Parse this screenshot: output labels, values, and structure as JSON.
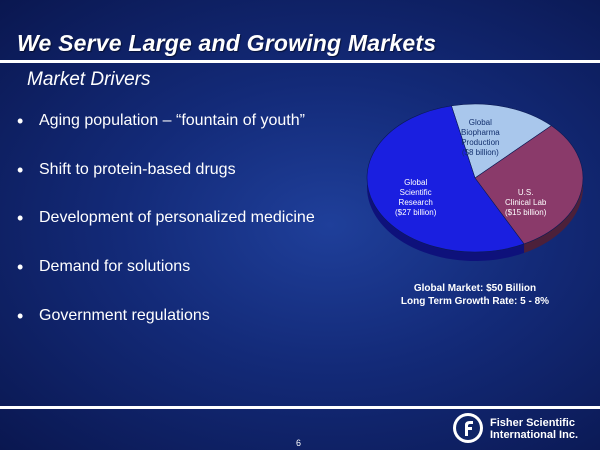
{
  "slide": {
    "title": "We Serve Large and Growing Markets",
    "subtitle": "Market Drivers",
    "page_number": "6"
  },
  "bullets": [
    "Aging population – “fountain of youth”",
    "Shift to protein-based drugs",
    "Development of personalized medicine",
    "Demand for solutions",
    "Government regulations"
  ],
  "chart_data": {
    "type": "pie",
    "slices": [
      {
        "label_lines": [
          "Global",
          "Biopharma",
          "Production",
          "($8 billion)"
        ],
        "value": 8,
        "color": "#a9c7ec"
      },
      {
        "label_lines": [
          "U.S.",
          "Clinical Lab",
          "($15 billion)"
        ],
        "value": 15,
        "color": "#8a3a6a"
      },
      {
        "label_lines": [
          "Global",
          "Scientific",
          "Research",
          "($27 billion)"
        ],
        "value": 27,
        "color": "#1a1fe0"
      }
    ]
  },
  "market": {
    "total_line": "Global Market: $50 Billion",
    "growth_line": "Long Term Growth Rate: 5 - 8%"
  },
  "logo": {
    "line1": "Fisher Scientific",
    "line2": "International Inc."
  }
}
